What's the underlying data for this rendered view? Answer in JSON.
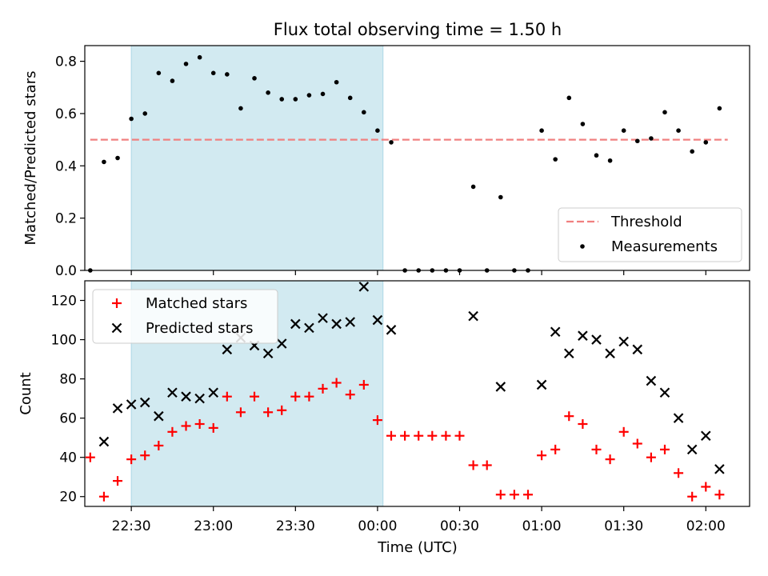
{
  "title": "Flux total observing time = 1.50 h",
  "colors": {
    "threshold": "#f08080",
    "measurements": "#000000",
    "matched": "#ff0000",
    "predicted": "#000000",
    "shade": "#add8e6"
  },
  "x_axis": {
    "label": "Time (UTC)",
    "ticks": [
      "22:30",
      "23:00",
      "23:30",
      "00:00",
      "00:30",
      "01:00",
      "01:30",
      "02:00"
    ]
  },
  "chart_data": [
    {
      "type": "scatter",
      "ylabel": "Matched/Predicted stars",
      "ylim": [
        0,
        0.86
      ],
      "yticks": [
        "0.0",
        "0.2",
        "0.4",
        "0.6",
        "0.8"
      ],
      "shaded_span": [
        "22:30",
        "00:02"
      ],
      "threshold": {
        "name": "Threshold",
        "value": 0.5,
        "from": "22:15",
        "to": "02:08"
      },
      "legend": {
        "position": "lower right",
        "entries": [
          "Threshold",
          "Measurements"
        ]
      },
      "series": [
        {
          "name": "Measurements",
          "marker": "dot",
          "x": [
            "22:15",
            "22:20",
            "22:25",
            "22:30",
            "22:35",
            "22:40",
            "22:45",
            "22:50",
            "22:55",
            "23:00",
            "23:05",
            "23:10",
            "23:15",
            "23:20",
            "23:25",
            "23:30",
            "23:35",
            "23:40",
            "23:45",
            "23:50",
            "23:55",
            "00:00",
            "00:05",
            "00:10",
            "00:15",
            "00:20",
            "00:25",
            "00:30",
            "00:35",
            "00:40",
            "00:45",
            "00:50",
            "00:55",
            "01:00",
            "01:05",
            "01:10",
            "01:15",
            "01:20",
            "01:25",
            "01:30",
            "01:35",
            "01:40",
            "01:45",
            "01:50",
            "01:55",
            "02:00",
            "02:05"
          ],
          "y": [
            0.0,
            0.415,
            0.43,
            0.58,
            0.6,
            0.755,
            0.725,
            0.79,
            0.815,
            0.755,
            0.75,
            0.62,
            0.735,
            0.68,
            0.655,
            0.655,
            0.67,
            0.675,
            0.72,
            0.66,
            0.605,
            0.535,
            0.49,
            0.0,
            0.0,
            0.0,
            0.0,
            0.0,
            0.32,
            0.0,
            0.28,
            0.0,
            0.0,
            0.535,
            0.425,
            0.66,
            0.56,
            0.44,
            0.42,
            0.535,
            0.495,
            0.505,
            0.605,
            0.535,
            0.455,
            0.49,
            0.62
          ]
        }
      ]
    },
    {
      "type": "scatter",
      "ylabel": "Count",
      "ylim": [
        15,
        130
      ],
      "yticks": [
        "20",
        "40",
        "60",
        "80",
        "100",
        "120"
      ],
      "shaded_span": [
        "22:30",
        "00:02"
      ],
      "legend": {
        "position": "upper left",
        "entries": [
          "Matched stars",
          "Predicted stars"
        ]
      },
      "series": [
        {
          "name": "Matched stars",
          "marker": "plus",
          "x": [
            "22:15",
            "22:20",
            "22:25",
            "22:30",
            "22:35",
            "22:40",
            "22:45",
            "22:50",
            "22:55",
            "23:00",
            "23:05",
            "23:10",
            "23:15",
            "23:20",
            "23:25",
            "23:30",
            "23:35",
            "23:40",
            "23:45",
            "23:50",
            "23:55",
            "00:00",
            "00:05",
            "00:10",
            "00:15",
            "00:20",
            "00:25",
            "00:30",
            "00:35",
            "00:40",
            "00:45",
            "00:50",
            "00:55",
            "01:00",
            "01:05",
            "01:10",
            "01:15",
            "01:20",
            "01:25",
            "01:30",
            "01:35",
            "01:40",
            "01:45",
            "01:50",
            "01:55",
            "02:00",
            "02:05"
          ],
          "y": [
            40,
            20,
            28,
            39,
            41,
            46,
            53,
            56,
            57,
            55,
            71,
            63,
            71,
            63,
            64,
            71,
            71,
            75,
            78,
            72,
            77,
            59,
            51,
            51,
            51,
            51,
            51,
            51,
            36,
            36,
            21,
            21,
            21,
            41,
            44,
            61,
            57,
            44,
            39,
            53,
            47,
            40,
            44,
            32,
            20,
            25,
            21
          ]
        },
        {
          "name": "Predicted stars",
          "marker": "x",
          "x": [
            "22:20",
            "22:25",
            "22:30",
            "22:35",
            "22:40",
            "22:45",
            "22:50",
            "22:55",
            "23:00",
            "23:05",
            "23:10",
            "23:15",
            "23:20",
            "23:25",
            "23:30",
            "23:35",
            "23:40",
            "23:45",
            "23:50",
            "23:55",
            "00:00",
            "00:05",
            "00:35",
            "00:45",
            "01:00",
            "01:05",
            "01:10",
            "01:15",
            "01:20",
            "01:25",
            "01:30",
            "01:35",
            "01:40",
            "01:45",
            "01:50",
            "01:55",
            "02:00",
            "02:05"
          ],
          "y": [
            48,
            65,
            67,
            68,
            61,
            73,
            71,
            70,
            73,
            95,
            101,
            97,
            93,
            98,
            108,
            106,
            111,
            108,
            109,
            127,
            110,
            105,
            112,
            76,
            77,
            104,
            93,
            102,
            100,
            93,
            99,
            95,
            79,
            73,
            60,
            44,
            51,
            34
          ]
        }
      ]
    }
  ]
}
